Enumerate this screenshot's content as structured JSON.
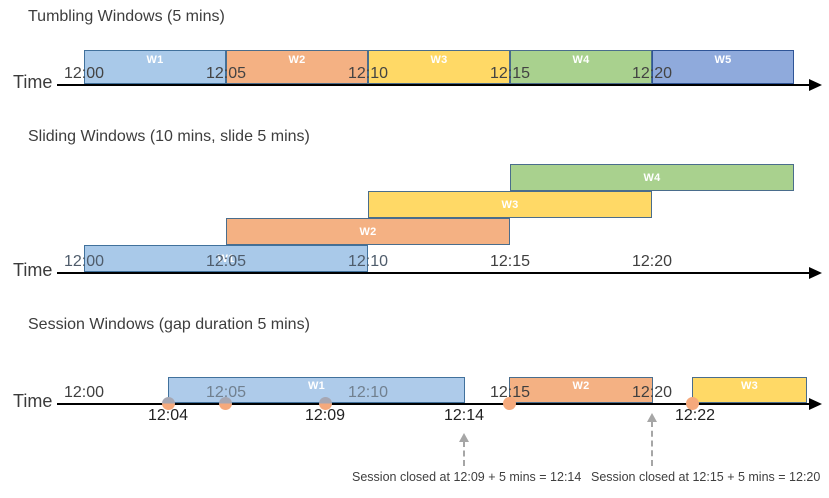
{
  "diagram": {
    "axis_color": "#000000",
    "dashed_arrow_color": "#a6a6a6",
    "sections": [
      {
        "title": "Tumbling Windows (5 mins)",
        "axis_label": "Time",
        "tick_color": "#434343",
        "ticks": [
          {
            "label": "12:00"
          },
          {
            "label": "12:05"
          },
          {
            "label": "12:10"
          },
          {
            "label": "12:15"
          },
          {
            "label": "12:20"
          }
        ],
        "windows": [
          {
            "label": "W1",
            "start": "12:00",
            "end": "12:05",
            "fill": "#A9C9E9",
            "border": "#41719C"
          },
          {
            "label": "W2",
            "start": "12:05",
            "end": "12:10",
            "fill": "#F4B183",
            "border": "#4A6D8C"
          },
          {
            "label": "W3",
            "start": "12:10",
            "end": "12:15",
            "fill": "#FFD966",
            "border": "#4A6D8C"
          },
          {
            "label": "W4",
            "start": "12:15",
            "end": "12:20",
            "fill": "#A9D18E",
            "border": "#4A6D8C"
          },
          {
            "label": "W5",
            "start": "12:20",
            "end": "12:25",
            "fill": "#8FAADC",
            "border": "#2F5597"
          }
        ]
      },
      {
        "title": "Sliding Windows (10 mins, slide 5 mins)",
        "axis_label": "Time",
        "tick_color": "#3f3f3f",
        "tick_muted_color": "#4f5c6b",
        "ticks": [
          {
            "label": "12:00",
            "muted": true
          },
          {
            "label": "12:05",
            "muted": true
          },
          {
            "label": "12:10",
            "muted": true
          },
          {
            "label": "12:15"
          },
          {
            "label": "12:20"
          }
        ],
        "windows": [
          {
            "label": "W1",
            "start": "12:00",
            "end": "12:10",
            "row": 0,
            "fill": "#A9C9E9",
            "border": "#41719C"
          },
          {
            "label": "W2",
            "start": "12:05",
            "end": "12:15",
            "row": 1,
            "fill": "#F4B183",
            "border": "#4A6D8C"
          },
          {
            "label": "W3",
            "start": "12:10",
            "end": "12:20",
            "row": 2,
            "fill": "#FFD966",
            "border": "#4A6D8C"
          },
          {
            "label": "W4",
            "start": "12:15",
            "end": "12:25",
            "row": 3,
            "fill": "#A9D18E",
            "border": "#4A6D8C"
          }
        ]
      },
      {
        "title": "Session Windows (gap duration 5 mins)",
        "axis_label": "Time",
        "tick_color": "#3f3f3f",
        "tick_muted_color": "#71808f",
        "ticks": [
          {
            "label": "12:00"
          },
          {
            "label": "12:05",
            "muted": true
          },
          {
            "label": "12:10",
            "muted": true
          },
          {
            "label": "12:15"
          },
          {
            "label": "12:20"
          }
        ],
        "windows": [
          {
            "label": "W1",
            "start": "12:04",
            "end": "12:14",
            "fill": "#AECBEA",
            "border": "#41719C"
          },
          {
            "label": "W2",
            "start": "12:15",
            "end": "12:20",
            "fill": "#F4B183",
            "border": "#4A6D8C"
          },
          {
            "label": "W3",
            "start": "12:22",
            "end": "12:24",
            "fill": "#FFD966",
            "border": "#4A6D8C"
          }
        ],
        "dot_color": "#F5A97C",
        "dot_muted_top_color": "#A6A7B3",
        "event_dots": [
          {
            "label": "12:04"
          },
          {
            "label": ""
          },
          {
            "label": "12:09"
          },
          {
            "label": "12:15"
          },
          {
            "label": "12:22"
          }
        ],
        "event_labels": [
          "12:04",
          "12:09",
          "12:14",
          "12:22"
        ],
        "annotations": [
          "Session closed at 12:09 + 5 mins = 12:14",
          "Session closed at 12:15 + 5 mins = 12:20"
        ]
      }
    ]
  }
}
